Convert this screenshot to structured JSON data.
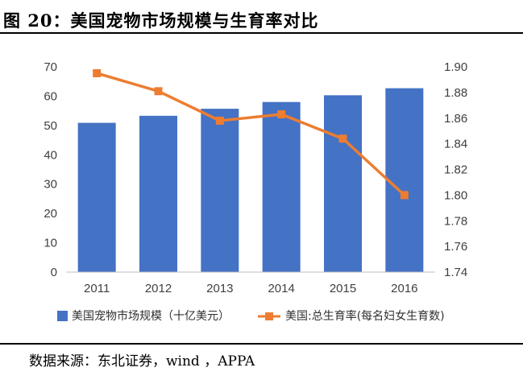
{
  "figure": {
    "title": "图 20：美国宠物市场规模与生育率对比",
    "source": "数据来源：东北证券，wind ，APPA"
  },
  "chart_data": {
    "type": "bar+line",
    "categories": [
      "2011",
      "2012",
      "2013",
      "2014",
      "2015",
      "2016"
    ],
    "series": [
      {
        "name": "美国宠物市场规模（十亿美元）",
        "type": "bar",
        "axis": "left",
        "color": "#4472C4",
        "values": [
          50.9,
          53.3,
          55.7,
          58.0,
          60.3,
          62.7
        ]
      },
      {
        "name": "美国:总生育率(每名妇女生育数)",
        "type": "line",
        "axis": "right",
        "color": "#ED7D31",
        "values": [
          1.895,
          1.881,
          1.858,
          1.863,
          1.844,
          1.8
        ]
      }
    ],
    "y_left": {
      "min": 0,
      "max": 70,
      "ticks": [
        "0",
        "10",
        "20",
        "30",
        "40",
        "50",
        "60",
        "70"
      ]
    },
    "y_right": {
      "min": 1.74,
      "max": 1.9,
      "ticks": [
        "1.74",
        "1.76",
        "1.78",
        "1.80",
        "1.82",
        "1.84",
        "1.86",
        "1.88",
        "1.90"
      ]
    },
    "legend_position": "bottom",
    "grid": false
  }
}
